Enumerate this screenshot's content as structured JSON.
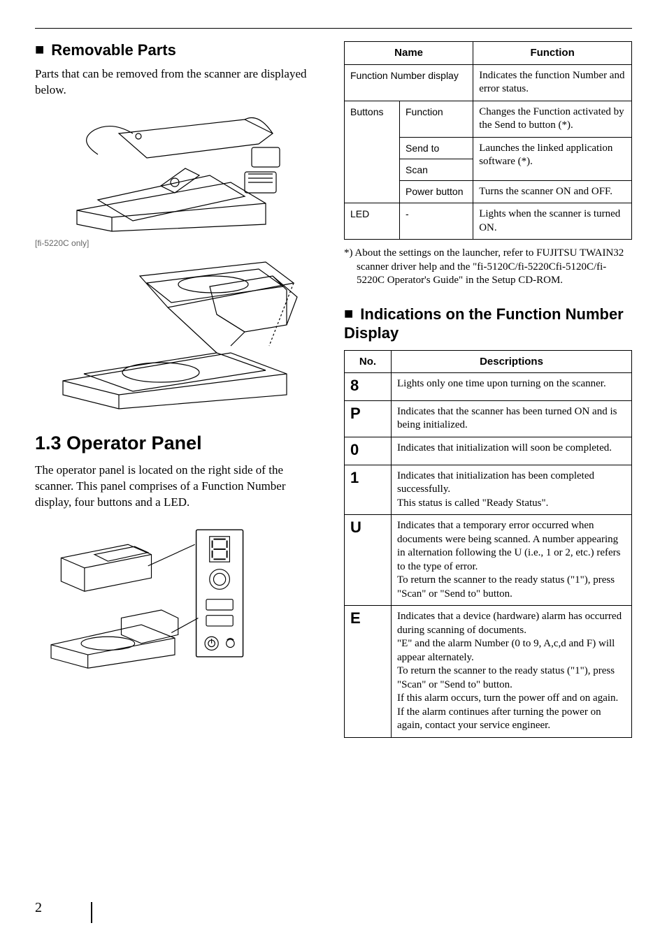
{
  "page_number": "2",
  "left": {
    "removable_heading": "Removable Parts",
    "removable_intro": "Parts that can be removed from the scanner are displayed below.",
    "fig_caption": "[fi-5220C only]",
    "op_heading": "1.3 Operator Panel",
    "op_intro": "The operator panel is located on the right side of the scanner. This panel comprises  of a Function Number display, four buttons and a LED."
  },
  "right": {
    "table1": {
      "headers": {
        "name": "Name",
        "function": "Function"
      },
      "rows": {
        "fnd": {
          "name": "Function Number display",
          "desc": "Indicates the function Number and error status."
        },
        "buttons_label": "Buttons",
        "btn_function": {
          "name": "Function",
          "desc": "Changes the Function activated by the Send to button (*)."
        },
        "btn_sendto": {
          "name": "Send to",
          "desc": "Launches the linked application software (*)."
        },
        "btn_scan": {
          "name": "Scan"
        },
        "btn_power": {
          "name": "Power button",
          "desc": "Turns the scanner ON and OFF."
        },
        "led": {
          "name": "LED",
          "sub": "-",
          "desc": "Lights when the scanner is turned ON."
        }
      }
    },
    "note": "*) About the settings on the launcher, refer to FUJITSU TWAIN32 scanner driver help and the \"fi-5120C/fi-5220Cfi-5120C/fi-5220C Operator's Guide\" in the Setup CD-ROM.",
    "ind_heading": "Indications on the Function Number Display",
    "table2": {
      "headers": {
        "no": "No.",
        "desc": "Descriptions"
      },
      "rows": {
        "r8": {
          "no": "8",
          "desc": "Lights only one time upon turning on the scanner."
        },
        "rP": {
          "no": "P",
          "desc": "Indicates that the scanner has been turned ON and is being initialized."
        },
        "r0": {
          "no": "0",
          "desc": "Indicates that initialization will soon be completed."
        },
        "r1": {
          "no": "1",
          "desc": "Indicates that initialization has been completed successfully.\nThis status is called \"Ready Status\"."
        },
        "rU": {
          "no": "U",
          "desc": "Indicates that a temporary error occurred when documents were being scanned. A number appearing in alternation following the U  (i.e., 1 or 2, etc.) refers to the type of error.\nTo return the scanner to the ready status (\"1\"), press \"Scan\" or \"Send to\" button."
        },
        "rE": {
          "no": "E",
          "desc": "Indicates that a device (hardware) alarm has occurred during scanning of documents.\n\"E\" and the alarm Number (0 to 9, A,c,d and F) will appear alternately.\nTo return the scanner to the ready status (\"1\"), press \"Scan\" or \"Send to\" button.\nIf this alarm occurs, turn the power off and on again. If the alarm continues after turning the power on again, contact your service engineer."
        }
      }
    }
  }
}
